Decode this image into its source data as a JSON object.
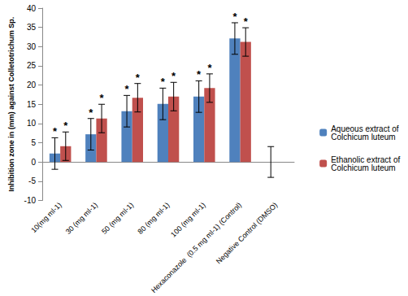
{
  "chart_data": {
    "type": "bar",
    "categories": [
      "10(mg ml-1)",
      "30 (mg ml-1)",
      "50 (mg ml-1)",
      "80 (mg ml-1)",
      "100 (mg ml-1)",
      "Hexaconazole  (0.5 mg ml-1) (Control)",
      "Negative Control (DMSO)"
    ],
    "y_label": "Inhibition zone in (mm) against Colletotrichum Sp.",
    "series": [
      {
        "name": "Aqueous extract of Colchicum luteum",
        "color": "#4f81bd",
        "values": [
          2.2,
          7.2,
          13.2,
          15.1,
          17.0,
          32.1,
          0
        ],
        "errors": [
          4.1,
          4.1,
          4.1,
          4.1,
          4.1,
          4.1,
          4.0
        ],
        "significance": [
          "*",
          "*",
          "*",
          "*",
          "*",
          "*",
          null
        ]
      },
      {
        "name": "Ethanolic extract of Colchicum luteum",
        "color": "#c0504d",
        "values": [
          4.1,
          11.3,
          16.7,
          17.0,
          19.2,
          31.2,
          null
        ],
        "errors": [
          3.7,
          3.7,
          3.7,
          3.7,
          3.7,
          3.7,
          null
        ],
        "significance": [
          "*",
          "*",
          "*",
          "*",
          "*",
          "*",
          null
        ]
      }
    ],
    "ylim": [
      -10,
      40
    ],
    "yticks": [
      -10,
      -5,
      0,
      5,
      10,
      15,
      20,
      25,
      30,
      35,
      40
    ],
    "grid": false,
    "legend": "right"
  }
}
